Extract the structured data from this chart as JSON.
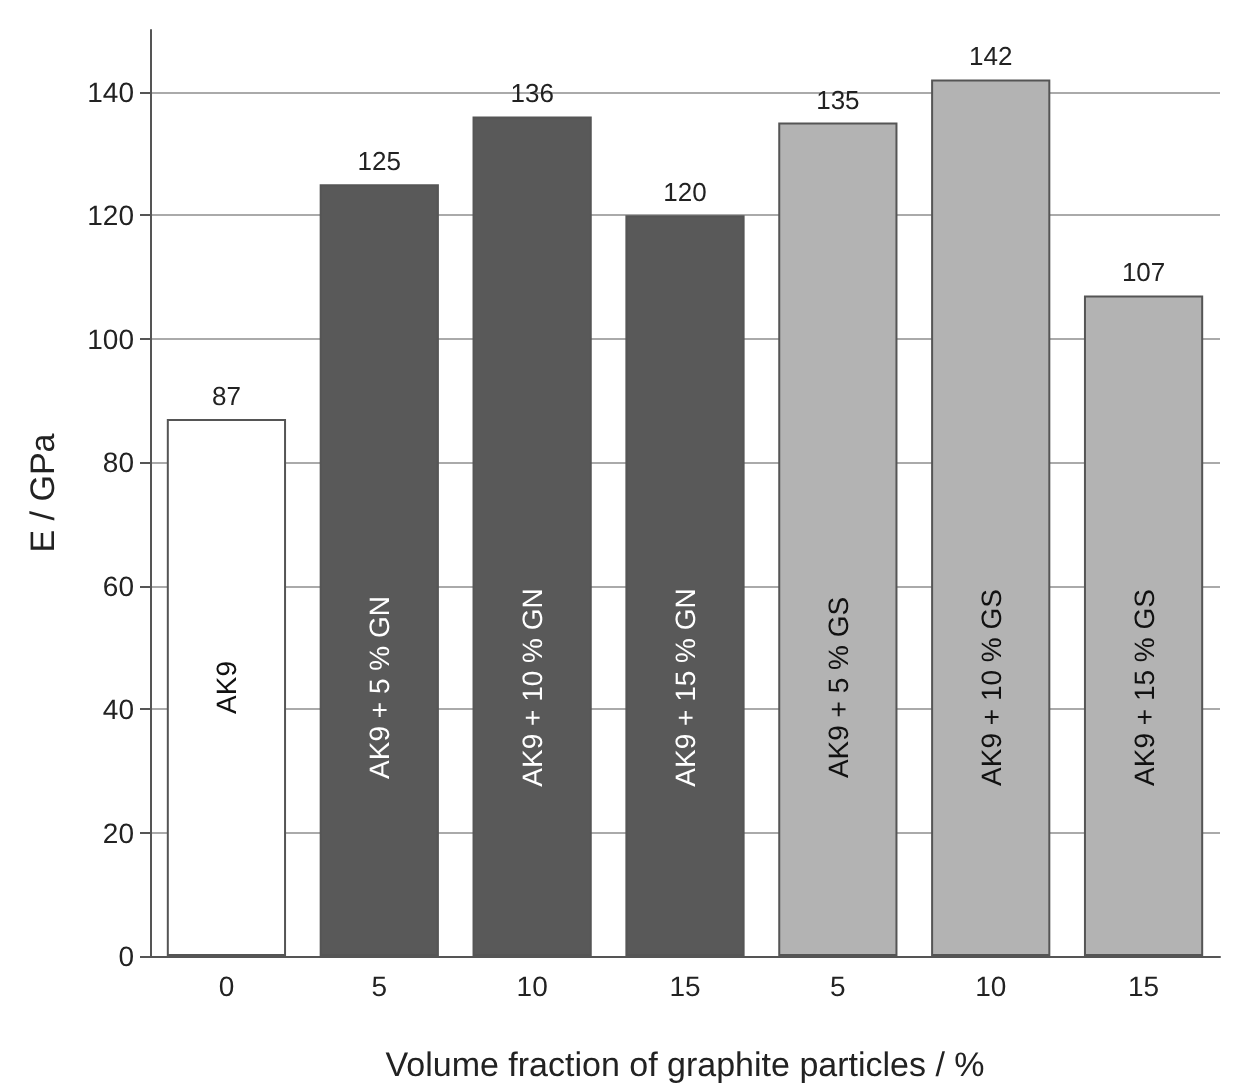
{
  "chart_data": {
    "type": "bar",
    "xlabel": "Volume fraction of graphite particles / %",
    "ylabel": "E / GPa",
    "categories": [
      "0",
      "5",
      "10",
      "15",
      "5",
      "10",
      "15"
    ],
    "values": [
      87,
      125,
      136,
      120,
      135,
      142,
      107
    ],
    "colors": [
      "#ffffff",
      "#595959",
      "#595959",
      "#595959",
      "#b3b3b3",
      "#b3b3b3",
      "#b3b3b3"
    ],
    "annotations": [
      "AK9",
      "AK9 + 5 % GN",
      "AK9 + 10 % GN",
      "AK9 + 15 % GN",
      "AK9 + 5 % GS",
      "AK9 + 10 % GS",
      "AK9 + 15 % GS"
    ],
    "ylim": [
      0,
      150
    ],
    "yticks": [
      0,
      20,
      40,
      60,
      80,
      100,
      120,
      140
    ],
    "grid": "y",
    "data_labels": true
  }
}
